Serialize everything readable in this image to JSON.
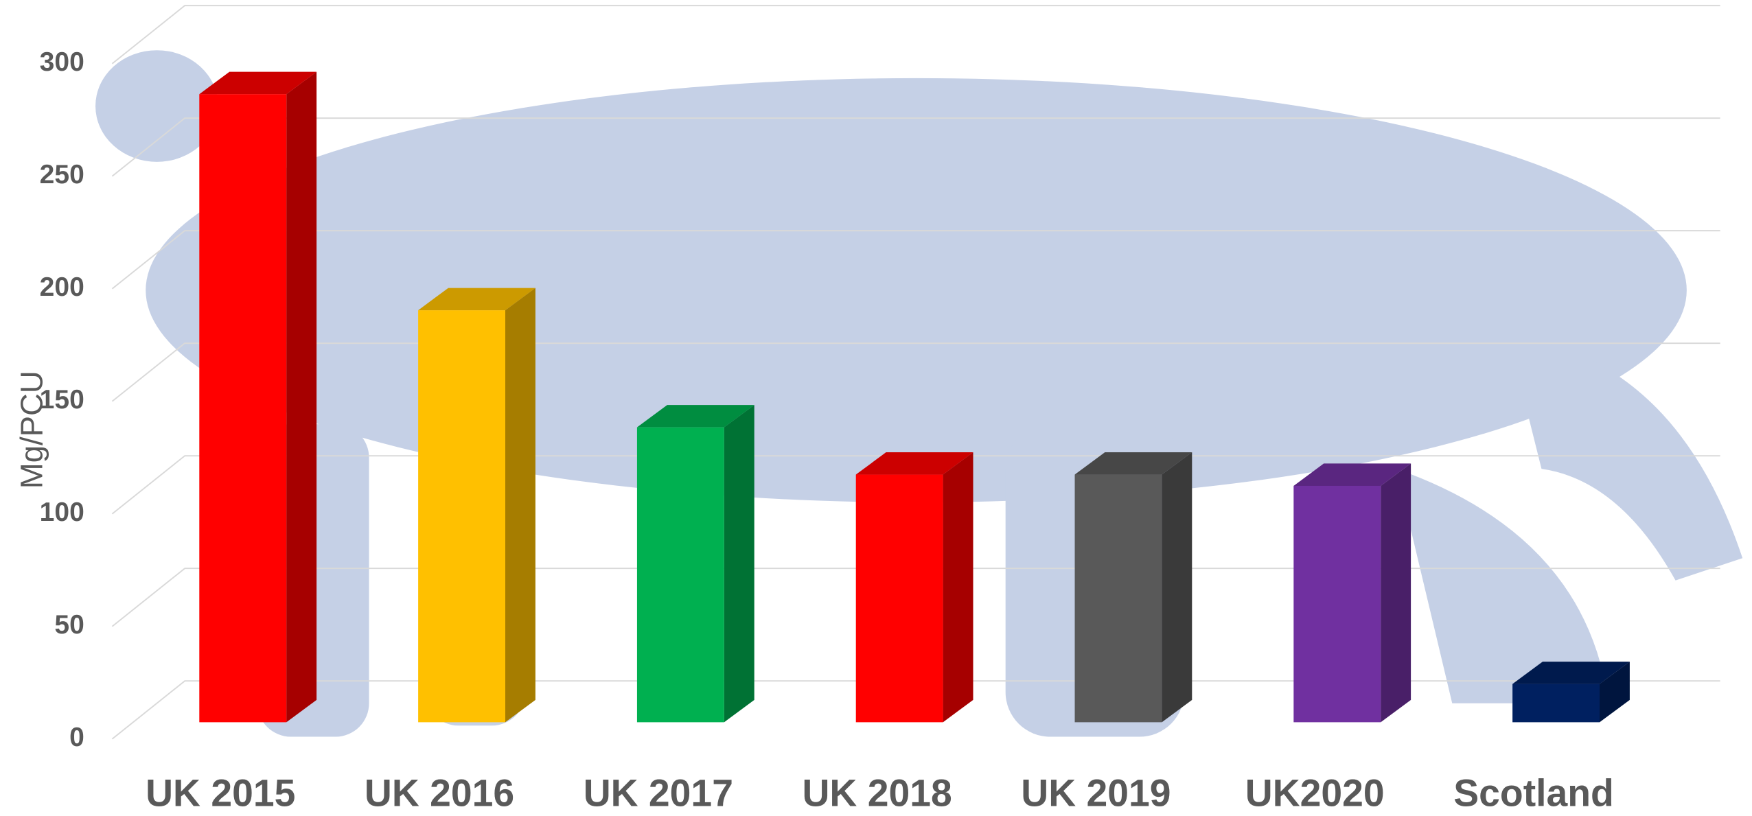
{
  "chart_data": {
    "type": "bar3d",
    "y_label": "Mg/PCU",
    "categories": [
      "UK 2015",
      "UK 2016",
      "UK 2017",
      "UK 2018",
      "UK 2019",
      "UK2020",
      "Scotland"
    ],
    "values": [
      279,
      183,
      131,
      110,
      110,
      105,
      17
    ],
    "colors": [
      "#ff0000",
      "#ffc000",
      "#00b050",
      "#ff0000",
      "#595959",
      "#7030a0",
      "#002060"
    ],
    "ylim": [
      0,
      300
    ],
    "yticks": [
      0,
      50,
      100,
      150,
      200,
      250,
      300
    ],
    "grid": true
  }
}
